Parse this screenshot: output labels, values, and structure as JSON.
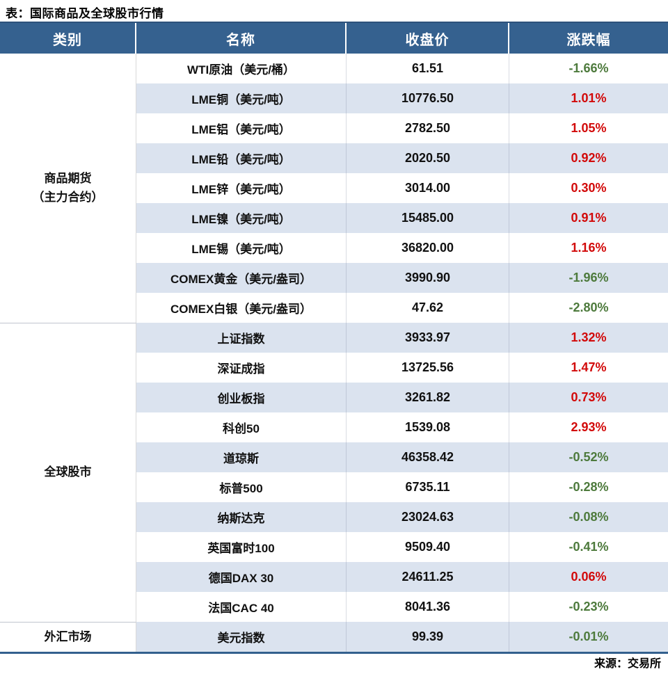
{
  "title": "表：国际商品及全球股市行情",
  "source": "来源：交易所",
  "colors": {
    "header_bg": "#35618f",
    "row_alt": "#dbe3ef",
    "up": "#d20a0a",
    "down": "#4d7a3c",
    "border_top": "#2d527b",
    "border_bottom": "#33608e"
  },
  "table": {
    "headers": [
      "类别",
      "名称",
      "收盘价",
      "涨跌幅"
    ],
    "groups": [
      {
        "category": "商品期货（主力合约）",
        "category_lines": [
          "商品期货",
          "（主力合约）"
        ],
        "rows": [
          {
            "name": "WTI原油（美元/桶）",
            "close": "61.51",
            "change": "-1.66%",
            "dir": "down"
          },
          {
            "name": "LME铜（美元/吨）",
            "close": "10776.50",
            "change": "1.01%",
            "dir": "up"
          },
          {
            "name": "LME铝（美元/吨）",
            "close": "2782.50",
            "change": "1.05%",
            "dir": "up"
          },
          {
            "name": "LME铅（美元/吨）",
            "close": "2020.50",
            "change": "0.92%",
            "dir": "up"
          },
          {
            "name": "LME锌（美元/吨）",
            "close": "3014.00",
            "change": "0.30%",
            "dir": "up"
          },
          {
            "name": "LME镍（美元/吨）",
            "close": "15485.00",
            "change": "0.91%",
            "dir": "up"
          },
          {
            "name": "LME锡（美元/吨）",
            "close": "36820.00",
            "change": "1.16%",
            "dir": "up"
          },
          {
            "name": "COMEX黄金（美元/盎司）",
            "close": "3990.90",
            "change": "-1.96%",
            "dir": "down"
          },
          {
            "name": "COMEX白银（美元/盎司）",
            "close": "47.62",
            "change": "-2.80%",
            "dir": "down"
          }
        ]
      },
      {
        "category": "全球股市",
        "category_lines": [
          "全球股市"
        ],
        "rows": [
          {
            "name": "上证指数",
            "close": "3933.97",
            "change": "1.32%",
            "dir": "up"
          },
          {
            "name": "深证成指",
            "close": "13725.56",
            "change": "1.47%",
            "dir": "up"
          },
          {
            "name": "创业板指",
            "close": "3261.82",
            "change": "0.73%",
            "dir": "up"
          },
          {
            "name": "科创50",
            "close": "1539.08",
            "change": "2.93%",
            "dir": "up"
          },
          {
            "name": "道琼斯",
            "close": "46358.42",
            "change": "-0.52%",
            "dir": "down"
          },
          {
            "name": "标普500",
            "close": "6735.11",
            "change": "-0.28%",
            "dir": "down"
          },
          {
            "name": "纳斯达克",
            "close": "23024.63",
            "change": "-0.08%",
            "dir": "down"
          },
          {
            "name": "英国富时100",
            "close": "9509.40",
            "change": "-0.41%",
            "dir": "down"
          },
          {
            "name": "德国DAX 30",
            "close": "24611.25",
            "change": "0.06%",
            "dir": "up"
          },
          {
            "name": "法国CAC 40",
            "close": "8041.36",
            "change": "-0.23%",
            "dir": "down"
          }
        ]
      },
      {
        "category": "外汇市场",
        "category_lines": [
          "外汇市场"
        ],
        "rows": [
          {
            "name": "美元指数",
            "close": "99.39",
            "change": "-0.01%",
            "dir": "down"
          }
        ]
      }
    ]
  }
}
